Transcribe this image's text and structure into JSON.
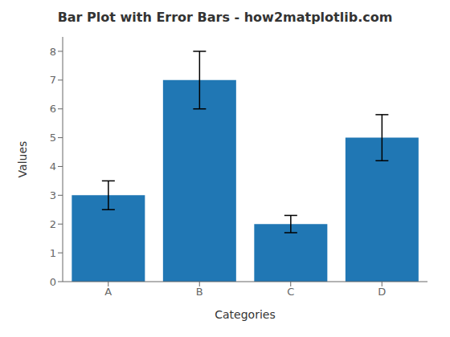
{
  "chart_data": {
    "type": "bar",
    "title": "Bar Plot with Error Bars - how2matplotlib.com",
    "xlabel": "Categories",
    "ylabel": "Values",
    "categories": [
      "A",
      "B",
      "C",
      "D"
    ],
    "values": [
      3,
      7,
      2,
      5
    ],
    "errors": [
      0.5,
      1.0,
      0.3,
      0.8
    ],
    "color": "#2077B4",
    "ylim": [
      0,
      8.5
    ],
    "yticks": [
      0,
      1,
      2,
      3,
      4,
      5,
      6,
      7,
      8
    ],
    "grid": false
  }
}
